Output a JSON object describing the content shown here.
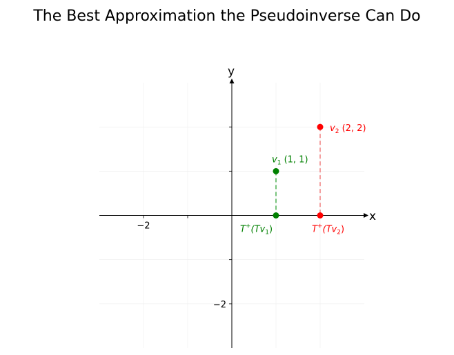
{
  "chart_data": {
    "type": "scatter",
    "title": "The Best Approximation the Pseudoinverse Can Do",
    "xlabel": "x",
    "ylabel": "y",
    "xlim": [
      -3,
      3
    ],
    "ylim": [
      -3,
      3
    ],
    "grid": true,
    "x_ticks": [
      {
        "value": -2,
        "label": "−2"
      }
    ],
    "y_ticks": [
      {
        "value": -2,
        "label": "−2"
      }
    ],
    "unlabeled_ticks": {
      "x": [
        -1,
        1,
        2
      ],
      "y": [
        -1,
        1,
        2
      ]
    },
    "points": [
      {
        "id": "v1",
        "x": 1,
        "y": 1,
        "color": "#008000",
        "label_main": "v",
        "label_sub": "1",
        "label_rest": " (1, 1)"
      },
      {
        "id": "v2",
        "x": 2,
        "y": 2,
        "color": "#ff0000",
        "label_main": "v",
        "label_sub": "2",
        "label_rest": " (2, 2)"
      },
      {
        "id": "tv1",
        "x": 1,
        "y": 0,
        "color": "#008000",
        "label_main": "T",
        "label_sup": "+",
        "label_rest": "(Tv",
        "label_sub": "1",
        "label_end": ")"
      },
      {
        "id": "tv2",
        "x": 2,
        "y": 0,
        "color": "#ff0000",
        "label_main": "T",
        "label_sup": "+",
        "label_rest": "(Tv",
        "label_sub": "2",
        "label_end": ")"
      }
    ],
    "projection_lines": [
      {
        "from": [
          1,
          1
        ],
        "to": [
          1,
          0
        ],
        "color": "#4caf50"
      },
      {
        "from": [
          2,
          2
        ],
        "to": [
          2,
          0
        ],
        "color": "#f08080"
      }
    ]
  }
}
